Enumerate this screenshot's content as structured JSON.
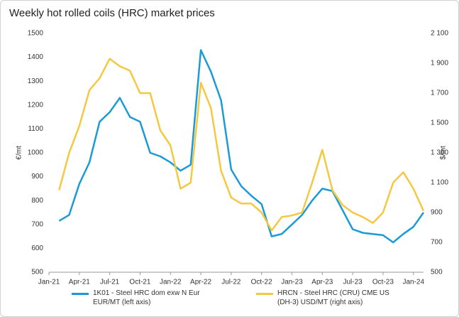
{
  "chart_data": {
    "type": "line",
    "title": "Weekly hot rolled coils (HRC) market prices",
    "y_label": "€/mt",
    "y2_label": "$/mt",
    "x": [
      "2021-02",
      "2021-03",
      "2021-04",
      "2021-05",
      "2021-06",
      "2021-07",
      "2021-08",
      "2021-09",
      "2021-10",
      "2021-11",
      "2021-12",
      "2022-01",
      "2022-02",
      "2022-03",
      "2022-04",
      "2022-05",
      "2022-06",
      "2022-07",
      "2022-08",
      "2022-09",
      "2022-10",
      "2022-11",
      "2022-12",
      "2023-01",
      "2023-02",
      "2023-03",
      "2023-04",
      "2023-05",
      "2023-06",
      "2023-07",
      "2023-08",
      "2023-09",
      "2023-10",
      "2023-11",
      "2023-12",
      "2024-01",
      "2024-02"
    ],
    "xlim": [
      "2021-01",
      "2024-02"
    ],
    "xticks": [
      {
        "value": "2021-01",
        "label": "Jan-21"
      },
      {
        "value": "2021-04",
        "label": "Apr-21"
      },
      {
        "value": "2021-07",
        "label": "Jul-21"
      },
      {
        "value": "2021-10",
        "label": "Oct-21"
      },
      {
        "value": "2022-01",
        "label": "Jan-22"
      },
      {
        "value": "2022-04",
        "label": "Apr-22"
      },
      {
        "value": "2022-07",
        "label": "Jul-22"
      },
      {
        "value": "2022-10",
        "label": "Oct-22"
      },
      {
        "value": "2023-01",
        "label": "Jan-23"
      },
      {
        "value": "2023-04",
        "label": "Apr-23"
      },
      {
        "value": "2023-07",
        "label": "Jul-23"
      },
      {
        "value": "2023-10",
        "label": "Oct-23"
      },
      {
        "value": "2024-01",
        "label": "Jan-24"
      }
    ],
    "ylim": [
      500,
      1500
    ],
    "yticks": [
      500,
      600,
      700,
      800,
      900,
      1000,
      1100,
      1200,
      1300,
      1400,
      1500
    ],
    "y2lim": [
      500,
      2100
    ],
    "y2ticks": [
      500,
      700,
      900,
      {
        "value": 1100,
        "label": "1 100"
      },
      {
        "value": 1300,
        "label": "1 300"
      },
      {
        "value": 1500,
        "label": "1 500"
      },
      {
        "value": 1700,
        "label": "1 700"
      },
      {
        "value": 1900,
        "label": "1 900"
      },
      {
        "value": 2100,
        "label": "2 100"
      }
    ],
    "series": [
      {
        "name": "1K01 - Steel HRC dom exw N Eur EUR/MT  (left axis)",
        "color": "#1a9bd7",
        "axis": "y",
        "values": [
          715,
          740,
          870,
          960,
          1130,
          1170,
          1230,
          1150,
          1130,
          1000,
          985,
          960,
          925,
          950,
          1430,
          1340,
          1220,
          930,
          860,
          820,
          785,
          650,
          660,
          700,
          740,
          800,
          850,
          840,
          760,
          680,
          665,
          660,
          655,
          625,
          660,
          690,
          750
        ]
      },
      {
        "name": "HRCN - Steel HRC (CRU) CME US (DH-3) USD/MT  (right axis)",
        "color": "#f5c842",
        "axis": "y2",
        "values": [
          1050,
          1300,
          1480,
          1720,
          1800,
          1930,
          1880,
          1850,
          1700,
          1700,
          1450,
          1350,
          1060,
          1100,
          1770,
          1600,
          1180,
          1000,
          960,
          960,
          900,
          780,
          870,
          880,
          900,
          1100,
          1320,
          1050,
          950,
          900,
          870,
          830,
          900,
          1100,
          1170,
          1060,
          910
        ]
      }
    ]
  }
}
